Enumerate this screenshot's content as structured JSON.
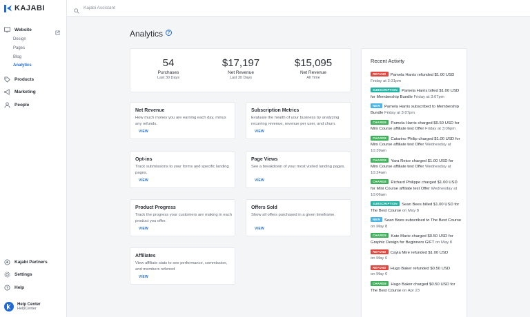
{
  "colors": {
    "accent": "#1f6ad6",
    "refund": "#e0463d",
    "subscription": "#20b3a4",
    "new": "#4ab4e6",
    "charge": "#3eb05a"
  },
  "app": {
    "logo": "KAJABI"
  },
  "search": {
    "placeholder": "Kajabi Assistant"
  },
  "sidebar": {
    "website": {
      "label": "Website",
      "icon": "monitor-icon"
    },
    "website_sub": [
      "Design",
      "Pages",
      "Blog",
      "Analytics"
    ],
    "products": {
      "label": "Products",
      "icon": "tag-icon"
    },
    "marketing": {
      "label": "Marketing",
      "icon": "megaphone-icon"
    },
    "people": {
      "label": "People",
      "icon": "person-icon"
    },
    "partners": {
      "label": "Kajabi Partners",
      "icon": "partners-icon"
    },
    "settings": {
      "label": "Settings",
      "icon": "gear-icon"
    },
    "help": {
      "label": "Help",
      "icon": "help-icon"
    },
    "help_center": {
      "title": "Help Center",
      "subtitle": "HelpCenter"
    }
  },
  "page": {
    "title": "Analytics"
  },
  "stats": [
    {
      "value": "54",
      "label": "Purchases",
      "period": "Last 30 Days"
    },
    {
      "value": "$17,197",
      "label": "Net Revenue",
      "period": "Last 30 Days"
    },
    {
      "value": "$15,095",
      "label": "Net Revenue",
      "period": "All Time"
    }
  ],
  "tiles": [
    {
      "title": "Net Revenue",
      "desc": "How much money you are earning each day, minus any refunds.",
      "action": "VIEW"
    },
    {
      "title": "Subscription Metrics",
      "desc": "Evaluate the health of your business by analyzing recurring revenue, revenue per user, and churn.",
      "action": "VIEW"
    },
    {
      "title": "Opt-ins",
      "desc": "Track submissions to your forms and specific landing pages.",
      "action": "VIEW"
    },
    {
      "title": "Page Views",
      "desc": "See a breakdown of your most visited landing pages.",
      "action": "VIEW"
    },
    {
      "title": "Product Progress",
      "desc": "Track the progress your customers are making in each product you offer.",
      "action": "VIEW"
    },
    {
      "title": "Offers Sold",
      "desc": "Show all offers purchased in a given timeframe.",
      "action": "VIEW"
    },
    {
      "title": "Affiliates",
      "desc": "View affiliate stats to see performance, commission, and members referred",
      "action": "VIEW"
    }
  ],
  "activity": {
    "title": "Recent Activity",
    "items": [
      {
        "badge": "REFUND",
        "type": "refund",
        "name": "Pamela Harris",
        "text": " refunded $1.00 USD",
        "target": "",
        "time": "Friday at 3:31pm"
      },
      {
        "badge": "SUBSCRIPTION",
        "type": "subscription",
        "name": "Pamela Harris",
        "text": " billed $1.00 USD for ",
        "target": "Membership Bundle",
        "time": " Friday at 3:07pm"
      },
      {
        "badge": "NEW",
        "type": "new",
        "name": "Pamela Harris",
        "text": " subscribed to ",
        "target": "Membership Bundle",
        "time": " Friday at 3:07pm"
      },
      {
        "badge": "CHARGE",
        "type": "charge",
        "name": "Pamela Harris",
        "text": " charged $0.50 USD for ",
        "target": "Mini Course affiliate test Offer",
        "time": " Friday at 3:06pm"
      },
      {
        "badge": "CHARGE",
        "type": "charge",
        "name": "Catarino Philip",
        "text": " charged $1.00 USD for ",
        "target": "Mini Course affiliate test Offer",
        "time": " Wednesday at 10:39am"
      },
      {
        "badge": "CHARGE",
        "type": "charge",
        "name": "Yara Reice",
        "text": " charged $1.00 USD for ",
        "target": "Mini Course affiliate test Offer",
        "time": " Wednesday at 10:24am"
      },
      {
        "badge": "CHARGE",
        "type": "charge",
        "name": "Richard Philippe",
        "text": " charged $1.00 USD for ",
        "target": "Mini Course affiliate test Offer",
        "time": " Wednesday at 10:06am"
      },
      {
        "badge": "SUBSCRIPTION",
        "type": "subscription",
        "name": "Sean Bees",
        "text": " billed $1.00 USD for ",
        "target": "The Best Course",
        "time": " on May 8"
      },
      {
        "badge": "NEW",
        "type": "new",
        "name": "Sean Bees",
        "text": " subscribed to ",
        "target": "The Best Course",
        "time": " on May 8"
      },
      {
        "badge": "CHARGE",
        "type": "charge",
        "name": "Kate Marie",
        "text": " charged $0.50 USD for ",
        "target": "Graphic Design for Beginners GIFT",
        "time": " on May 8"
      },
      {
        "badge": "REFUND",
        "type": "refund",
        "name": "Cayla Mire",
        "text": " refunded $1.00 USD",
        "target": "",
        "time": " on May 6"
      },
      {
        "badge": "REFUND",
        "type": "refund",
        "name": "Hugo Baker",
        "text": " refunded $0.50 USD",
        "target": "",
        "time": " on May 6"
      },
      {
        "badge": "CHARGE",
        "type": "charge",
        "name": "Hugo Baker",
        "text": " charged $0.50 USD for ",
        "target": "The Best Course",
        "time": " on Apr 23"
      }
    ]
  }
}
